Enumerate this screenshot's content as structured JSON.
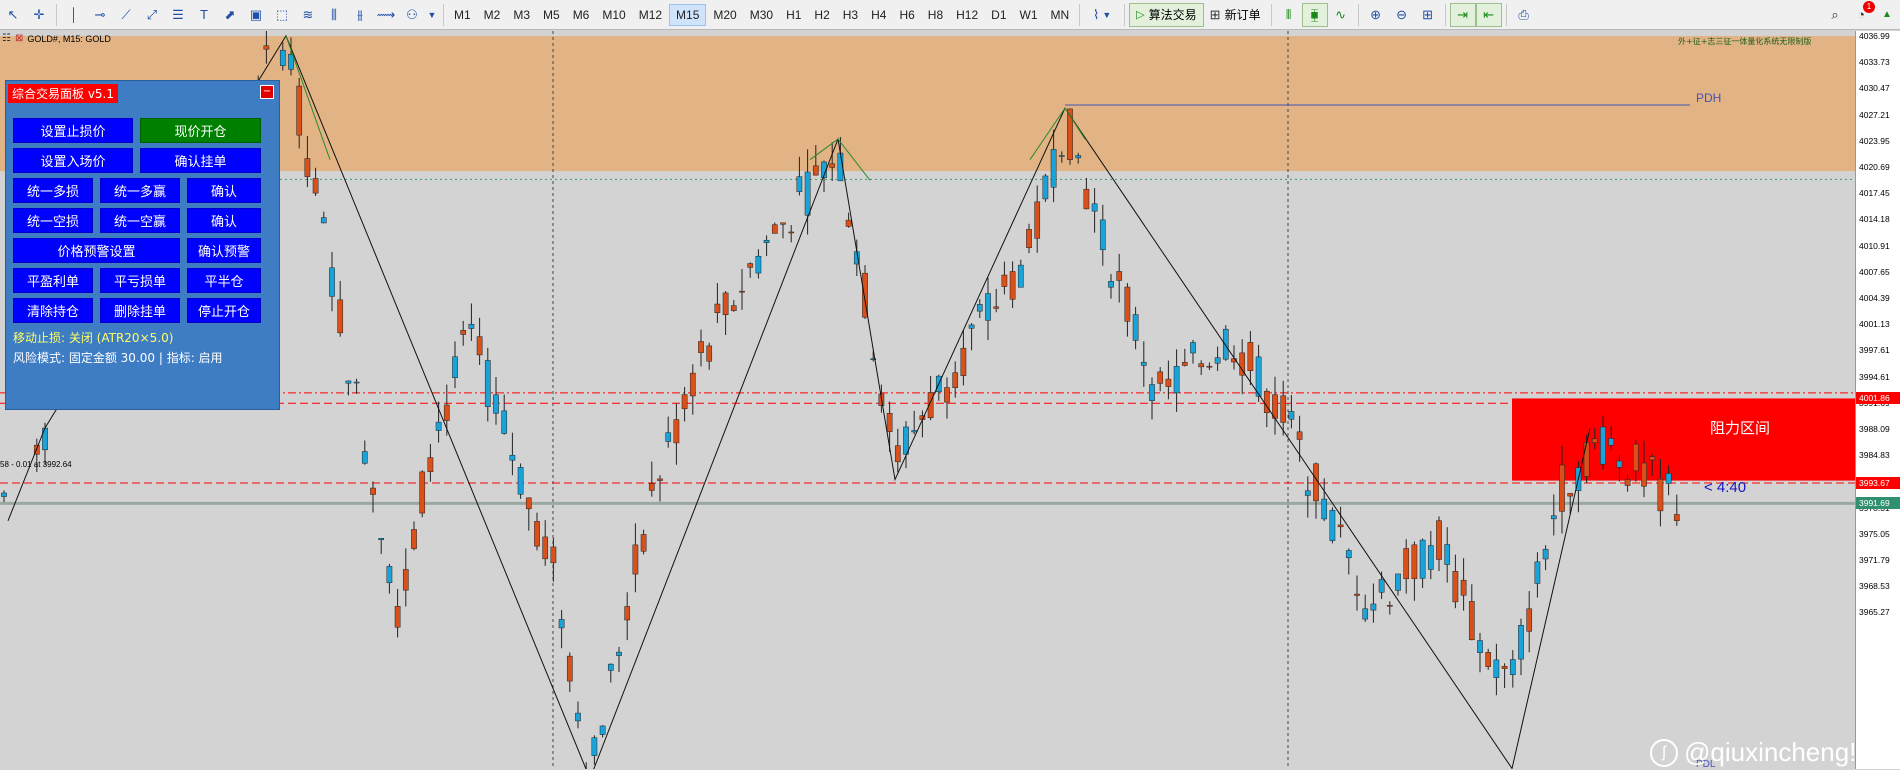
{
  "toolbar": {
    "tools": [
      {
        "name": "cursor-icon",
        "glyph": "↖"
      },
      {
        "name": "crosshair-icon",
        "glyph": "✛"
      },
      {
        "name": "vertical-line-icon",
        "glyph": "│"
      },
      {
        "name": "horizontal-line-icon",
        "glyph": "⊸"
      },
      {
        "name": "trendline-icon",
        "glyph": "⟋"
      },
      {
        "name": "angle-line-icon",
        "glyph": "⤢"
      },
      {
        "name": "fibonacci-icon",
        "glyph": "☰"
      },
      {
        "name": "text-icon",
        "glyph": "T"
      },
      {
        "name": "arrow-line-icon",
        "glyph": "⬈"
      },
      {
        "name": "indicator-chart-icon",
        "glyph": "▣"
      },
      {
        "name": "rectangle-icon",
        "glyph": "⬚"
      },
      {
        "name": "channel-icon",
        "glyph": "≋"
      },
      {
        "name": "gann-icon",
        "glyph": "⫼"
      },
      {
        "name": "elliott-icon",
        "glyph": "⫵"
      },
      {
        "name": "zigzag-icon",
        "glyph": "⟿"
      },
      {
        "name": "shapes-icon",
        "glyph": "⚇"
      }
    ],
    "timeframes": [
      "M1",
      "M2",
      "M3",
      "M5",
      "M6",
      "M10",
      "M12",
      "M15",
      "M20",
      "M30",
      "H1",
      "H2",
      "H3",
      "H4",
      "H6",
      "H8",
      "H12",
      "D1",
      "W1",
      "MN"
    ],
    "active_timeframe": "M15",
    "algo_trading_label": "算法交易",
    "new_order_label": "新订单",
    "notification_count": "1",
    "right_icons": [
      "chart-type-icon",
      "zoom-in-icon",
      "zoom-out-icon",
      "grid-icon",
      "autoscroll-icon",
      "chart-shift-icon",
      "screenshot-icon"
    ]
  },
  "chart": {
    "symbol_header": "GOLD#, M15:  GOLD",
    "marquee": "外+征+志三征一体量化系统无限制版",
    "trade_note": "58 - 0.01 at 3992.64",
    "pdh_label": "PDH",
    "pdl_label": "PDL",
    "resistance_label": "阻力区间",
    "countdown": "< 4:40",
    "watermark": "@qiuxincheng!"
  },
  "price_axis": {
    "ticks": [
      "4036.99",
      "4033.73",
      "4030.47",
      "4027.21",
      "4023.95",
      "4020.69",
      "4017.45",
      "4014.18",
      "4010.91",
      "4007.65",
      "4004.39",
      "4001.13",
      "3997.61",
      "3994.61",
      "3991.69",
      "3988.09",
      "3984.83",
      "3981.57",
      "3978.31",
      "3975.05",
      "3971.79",
      "3968.53",
      "3965.27"
    ],
    "tag_upper": {
      "value": "4001.86",
      "color": "#ff0000"
    },
    "tag_mid": {
      "value": "3993.67",
      "color": "#ff0000"
    },
    "tag_current": {
      "value": "3991.69",
      "color": "#2f8f6f"
    }
  },
  "panel": {
    "title": "综合交易面板 v5.1",
    "close": "−",
    "buttons": {
      "set_sl": "设置止损价",
      "market_open": "现价开仓",
      "set_entry": "设置入场价",
      "confirm_pending": "确认挂单",
      "all_long_sl": "统一多损",
      "all_long_tp": "统一多赢",
      "confirm1": "确认",
      "all_short_sl": "统一空损",
      "all_short_tp": "统一空赢",
      "confirm2": "确认",
      "price_alert": "价格预警设置",
      "confirm_alert": "确认预警",
      "close_profit": "平盈利单",
      "close_loss": "平亏损单",
      "close_half": "平半仓",
      "clear_positions": "清除持仓",
      "delete_pending": "删除挂单",
      "stop_open": "停止开仓"
    },
    "trailing_status": "移动止损: 关闭 (ATR20×5.0)",
    "risk_status": "风险模式: 固定金额 30.00 | 指标: 启用"
  },
  "colors": {
    "bull": "#1aa3d9",
    "bear": "#d9501a",
    "zone": "#e2b384",
    "resistance": "#ff0000",
    "panel_bg": "#3e7cc4",
    "button_blue": "#0000ff",
    "button_green": "#008000"
  }
}
